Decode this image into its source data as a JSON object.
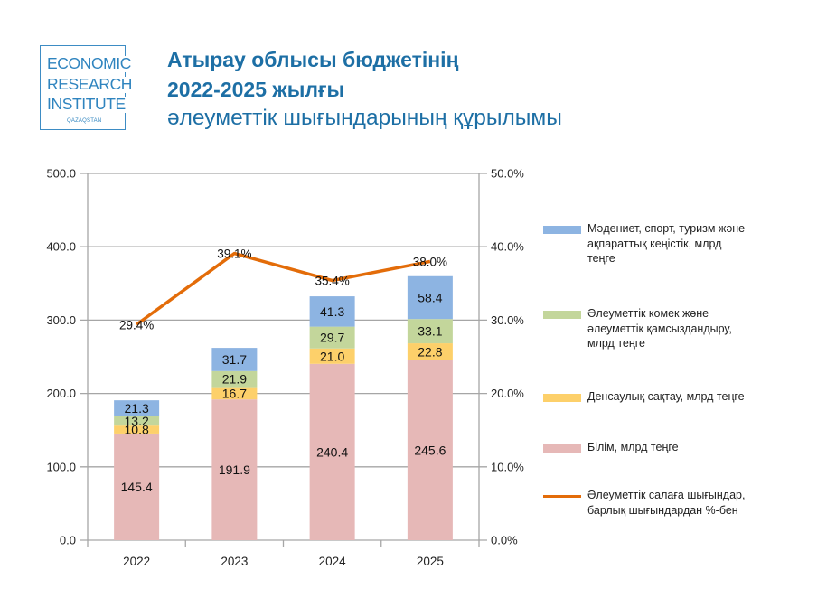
{
  "logo": {
    "lines": [
      "ECONOMIC",
      "RESEARCH",
      "INSTITUTE"
    ],
    "country": "QAZAQSTAN"
  },
  "title": {
    "line1": "Атырау облысы бюджетінің",
    "line2": "2022-2025 жылғы",
    "line3": "әлеуметтік шығындарының құрылымы"
  },
  "colors": {
    "title": "#1d6fa5",
    "culture": "#8db4e2",
    "social": "#c3d69b",
    "health": "#fdd06a",
    "education": "#e6b8b7",
    "share_line": "#e36c09",
    "grid": "#a6a6a6"
  },
  "chart_data": {
    "type": "bar",
    "stacked": true,
    "title": "Атырау облысы бюджетінің 2022-2025 жылғы әлеуметтік шығындарының құрылымы",
    "categories": [
      "2022",
      "2023",
      "2024",
      "2025"
    ],
    "series": [
      {
        "name": "Білім, млрд теңге",
        "key": "education",
        "color": "#e6b8b7",
        "values": [
          145.4,
          191.9,
          240.4,
          245.6
        ]
      },
      {
        "name": "Денсаулық сақтау, млрд теңге",
        "key": "health",
        "color": "#fdd06a",
        "values": [
          10.8,
          16.7,
          21.0,
          22.8
        ]
      },
      {
        "name": "Әлеуметтік комек және әлеуметтік қамсыздандыру, млрд теңге",
        "key": "social",
        "color": "#c3d69b",
        "values": [
          13.2,
          21.9,
          29.7,
          33.1
        ]
      },
      {
        "name": "Мәдениет, спорт, туризм және ақпараттық кеңістік, млрд теңге",
        "key": "culture",
        "color": "#8db4e2",
        "values": [
          21.3,
          31.7,
          41.3,
          58.4
        ]
      }
    ],
    "line_series": {
      "name": "Әлеуметтік салаға шығындар, барлық шығындардан %-бен",
      "color": "#e36c09",
      "axis": "right",
      "values": [
        29.4,
        39.1,
        35.4,
        38.0
      ],
      "labels": [
        "29.4%",
        "39.1%",
        "35.4%",
        "38.0%"
      ]
    },
    "bar_labels": [
      [
        "145.4",
        "191.9",
        "240.4",
        "245.6"
      ],
      [
        "10.8",
        "16.7",
        "21.0",
        "22.8"
      ],
      [
        "13.2",
        "21.9",
        "29.7",
        "33.1"
      ],
      [
        "21.3",
        "31.7",
        "41.3",
        "58.4"
      ]
    ],
    "y_left": {
      "min": 0,
      "max": 500,
      "step": 100,
      "tick_labels": [
        "0.0",
        "100.0",
        "200.0",
        "300.0",
        "400.0",
        "500.0"
      ]
    },
    "y_right": {
      "min": 0,
      "max": 50,
      "step": 10,
      "tick_labels": [
        "0.0%",
        "10.0%",
        "20.0%",
        "30.0%",
        "40.0%",
        "50.0%"
      ]
    },
    "xlabel": "",
    "ylabel": "",
    "grid": true,
    "legend_position": "right"
  },
  "legend": [
    {
      "key": "culture",
      "type": "bar",
      "lines": [
        "Мәдениет, спорт, туризм және",
        "ақпараттық кеңістік, млрд",
        "теңге"
      ]
    },
    {
      "key": "social",
      "type": "bar",
      "lines": [
        "Әлеуметтік комек және",
        "әлеуметтік қамсыздандыру,",
        "млрд теңге"
      ]
    },
    {
      "key": "health",
      "type": "bar",
      "lines": [
        "Денсаулық сақтау, млрд теңге"
      ]
    },
    {
      "key": "education",
      "type": "bar",
      "lines": [
        "Білім, млрд теңге"
      ]
    },
    {
      "key": "share_line",
      "type": "line",
      "lines": [
        "Әлеуметтік салаға шығындар,",
        "барлық шығындардан %-бен"
      ]
    }
  ]
}
